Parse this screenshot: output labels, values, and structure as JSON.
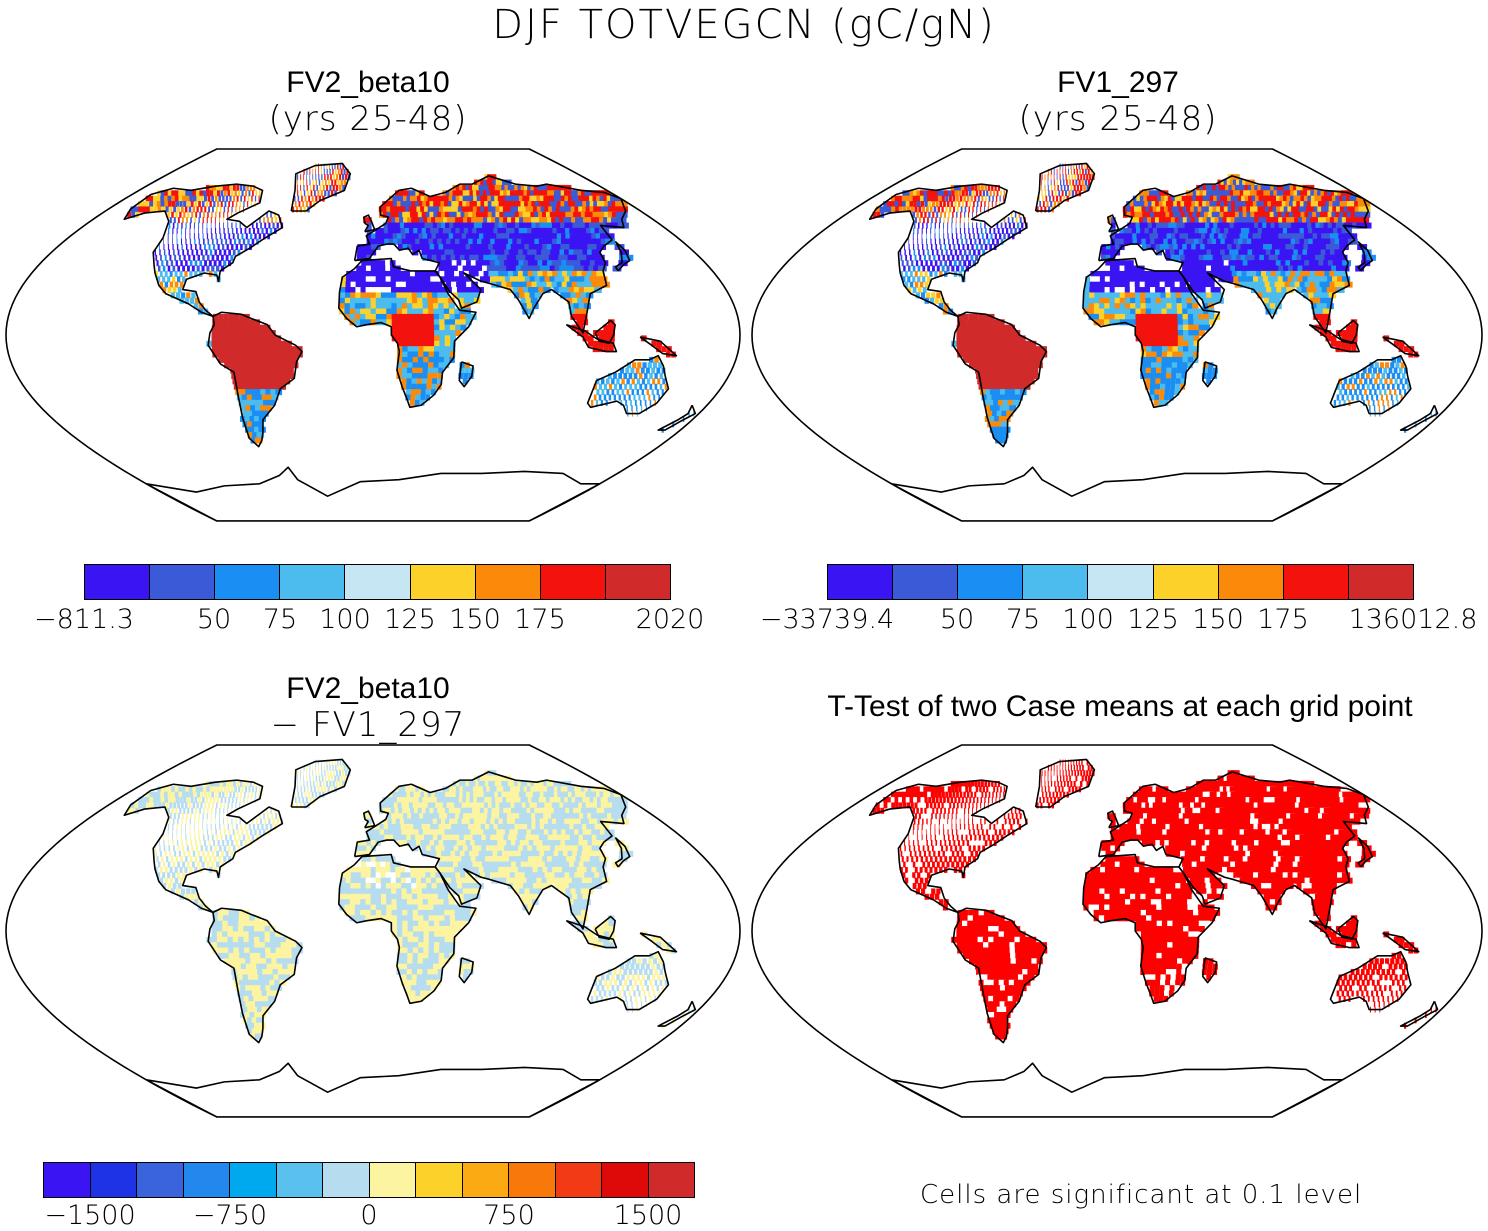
{
  "main_title": "DJF TOTVEGCN (gC/gN)",
  "panels": {
    "top_left": {
      "title": "FV2_beta10",
      "subtitle": "(yrs 25-48)"
    },
    "top_right": {
      "title": "FV1_297",
      "subtitle": "(yrs 25-48)"
    },
    "bottom_left": {
      "title": "FV2_beta10",
      "subtitle": "− FV1_297"
    },
    "bottom_right": {
      "title": "T-Test of two Case means at each grid point",
      "note": "Cells are significant at 0.1 level"
    }
  },
  "colorbars": {
    "top_left": {
      "colors": [
        "#3a14f2",
        "#3a5ad8",
        "#1a8ef2",
        "#4cbcee",
        "#c6e6f4",
        "#fcd22a",
        "#fb8a0a",
        "#f4120c",
        "#d02a2a"
      ],
      "labels": [
        "−811.3",
        "50",
        "75",
        "100",
        "125",
        "150",
        "175",
        "2020"
      ]
    },
    "top_right": {
      "colors": [
        "#3a14f2",
        "#3a5ad8",
        "#1a8ef2",
        "#4cbcee",
        "#c6e6f4",
        "#fcd22a",
        "#fb8a0a",
        "#f4120c",
        "#d02a2a"
      ],
      "labels": [
        "−33739.4",
        "50",
        "75",
        "100",
        "125",
        "150",
        "175",
        "136012.8"
      ]
    },
    "bottom_left": {
      "colors": [
        "#3a14f2",
        "#1e32e6",
        "#3a64dc",
        "#2288ee",
        "#00a8ee",
        "#5ac0ee",
        "#b6dcf0",
        "#fcf4a0",
        "#fcd22a",
        "#fcaa14",
        "#f8780a",
        "#f23a14",
        "#de0a0a",
        "#d02a2a"
      ],
      "labels": [
        "−1500",
        "−750",
        "0",
        "750",
        "1500"
      ]
    }
  },
  "map_colors": {
    "ocean": "#ffffff",
    "outline": "#000000",
    "ttest_significant": "#ff0000"
  }
}
